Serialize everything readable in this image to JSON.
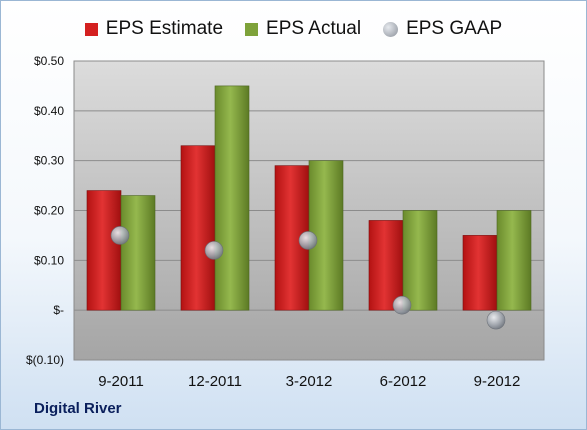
{
  "company": "Digital River",
  "colors": {
    "estimate": "#d42020",
    "actual": "#7ea23a",
    "gaap": "#9aa0a8",
    "plot_top": "#d9d9d9",
    "plot_bottom": "#a7a7a7"
  },
  "chart_data": {
    "type": "bar",
    "categories": [
      "9-2011",
      "12-2011",
      "3-2012",
      "6-2012",
      "9-2012"
    ],
    "series": [
      {
        "name": "EPS Estimate",
        "kind": "bar",
        "values": [
          0.24,
          0.33,
          0.29,
          0.18,
          0.15
        ]
      },
      {
        "name": "EPS Actual",
        "kind": "bar",
        "values": [
          0.23,
          0.45,
          0.3,
          0.2,
          0.2
        ]
      },
      {
        "name": "EPS GAAP",
        "kind": "marker",
        "values": [
          0.15,
          0.12,
          0.14,
          0.01,
          -0.02
        ]
      }
    ],
    "ylim": [
      -0.1,
      0.5
    ],
    "yticks": [
      0.5,
      0.4,
      0.3,
      0.2,
      0.1,
      0.0,
      -0.1
    ],
    "ytick_labels": [
      "$0.50",
      "$0.40",
      "$0.30",
      "$0.20",
      "$0.10",
      "$-",
      "$(0.10)"
    ],
    "legend_position": "top",
    "grid": true
  }
}
